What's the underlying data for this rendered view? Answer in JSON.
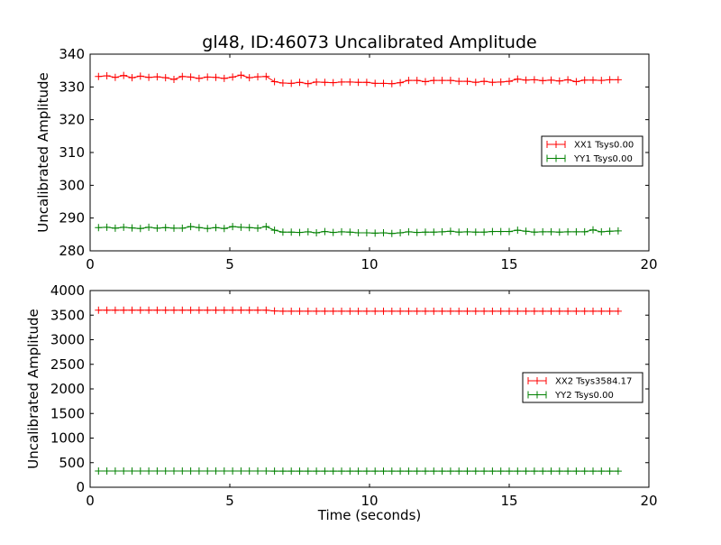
{
  "chart_data": [
    {
      "type": "line",
      "title": "gl48, ID:46073 Uncalibrated Amplitude",
      "xlabel": "",
      "ylabel": "Uncalibrated Amplitude",
      "xlim": [
        0,
        20
      ],
      "ylim": [
        280,
        340
      ],
      "xticks": [
        "0",
        "5",
        "10",
        "15",
        "20"
      ],
      "yticks": [
        "280",
        "290",
        "300",
        "310",
        "320",
        "330",
        "340"
      ],
      "grid": false,
      "legend_position": "center-right",
      "x": [
        0.3,
        0.6,
        0.9,
        1.2,
        1.5,
        1.8,
        2.1,
        2.4,
        2.7,
        3.0,
        3.3,
        3.6,
        3.9,
        4.2,
        4.5,
        4.8,
        5.1,
        5.4,
        5.7,
        6.0,
        6.3,
        6.6,
        6.9,
        7.2,
        7.5,
        7.8,
        8.1,
        8.4,
        8.7,
        9.0,
        9.3,
        9.6,
        9.9,
        10.2,
        10.5,
        10.8,
        11.1,
        11.4,
        11.7,
        12.0,
        12.3,
        12.6,
        12.9,
        13.2,
        13.5,
        13.8,
        14.1,
        14.4,
        14.7,
        15.0,
        15.3,
        15.6,
        15.9,
        16.2,
        16.5,
        16.8,
        17.1,
        17.4,
        17.7,
        18.0,
        18.3,
        18.6,
        18.9
      ],
      "series": [
        {
          "name": "XX1 Tsys0.00",
          "color": "#ff0000",
          "values": [
            333.2,
            333.4,
            332.9,
            333.5,
            332.8,
            333.3,
            332.9,
            333.1,
            332.8,
            332.3,
            333.2,
            333.0,
            332.6,
            333.0,
            332.9,
            332.6,
            333.0,
            333.6,
            332.8,
            333.1,
            333.2,
            331.6,
            331.2,
            331.1,
            331.4,
            331.0,
            331.5,
            331.4,
            331.3,
            331.5,
            331.5,
            331.4,
            331.4,
            331.1,
            331.1,
            331.0,
            331.3,
            332.0,
            332.0,
            331.6,
            332.0,
            332.0,
            332.0,
            331.7,
            331.7,
            331.4,
            331.7,
            331.4,
            331.5,
            331.7,
            332.4,
            332.1,
            332.2,
            331.9,
            332.1,
            331.8,
            332.2,
            331.6,
            332.1,
            332.1,
            332.0,
            332.2,
            332.2
          ]
        },
        {
          "name": "YY1 Tsys0.00",
          "color": "#008000",
          "values": [
            287.1,
            287.2,
            286.9,
            287.2,
            287.0,
            286.8,
            287.2,
            286.9,
            287.1,
            286.9,
            286.9,
            287.4,
            287.1,
            286.8,
            287.1,
            286.8,
            287.4,
            287.2,
            287.1,
            286.9,
            287.4,
            286.3,
            285.7,
            285.7,
            285.6,
            285.8,
            285.5,
            285.9,
            285.6,
            285.8,
            285.7,
            285.5,
            285.5,
            285.4,
            285.5,
            285.3,
            285.5,
            285.8,
            285.6,
            285.7,
            285.7,
            285.8,
            286.0,
            285.7,
            285.8,
            285.7,
            285.7,
            285.9,
            285.9,
            285.9,
            286.3,
            286.0,
            285.7,
            285.8,
            285.8,
            285.7,
            285.8,
            285.8,
            285.8,
            286.4,
            285.8,
            286.0,
            286.1
          ]
        }
      ]
    },
    {
      "type": "line",
      "title": "",
      "xlabel": "Time (seconds)",
      "ylabel": "Uncalibrated Amplitude",
      "xlim": [
        0,
        20
      ],
      "ylim": [
        0,
        4000
      ],
      "xticks": [
        "0",
        "5",
        "10",
        "15",
        "20"
      ],
      "yticks": [
        "0",
        "500",
        "1000",
        "1500",
        "2000",
        "2500",
        "3000",
        "3500",
        "4000"
      ],
      "grid": false,
      "legend_position": "center-right",
      "x": [
        0.3,
        0.6,
        0.9,
        1.2,
        1.5,
        1.8,
        2.1,
        2.4,
        2.7,
        3.0,
        3.3,
        3.6,
        3.9,
        4.2,
        4.5,
        4.8,
        5.1,
        5.4,
        5.7,
        6.0,
        6.3,
        6.6,
        6.9,
        7.2,
        7.5,
        7.8,
        8.1,
        8.4,
        8.7,
        9.0,
        9.3,
        9.6,
        9.9,
        10.2,
        10.5,
        10.8,
        11.1,
        11.4,
        11.7,
        12.0,
        12.3,
        12.6,
        12.9,
        13.2,
        13.5,
        13.8,
        14.1,
        14.4,
        14.7,
        15.0,
        15.3,
        15.6,
        15.9,
        16.2,
        16.5,
        16.8,
        17.1,
        17.4,
        17.7,
        18.0,
        18.3,
        18.6,
        18.9
      ],
      "series": [
        {
          "name": "XX2 Tsys3584.17",
          "color": "#ff0000",
          "values": [
            3600,
            3600,
            3600,
            3600,
            3600,
            3600,
            3600,
            3600,
            3600,
            3600,
            3600,
            3600,
            3600,
            3600,
            3600,
            3600,
            3600,
            3600,
            3600,
            3600,
            3600,
            3585,
            3580,
            3580,
            3580,
            3580,
            3580,
            3580,
            3580,
            3580,
            3580,
            3580,
            3580,
            3580,
            3580,
            3580,
            3580,
            3580,
            3580,
            3580,
            3580,
            3580,
            3580,
            3580,
            3580,
            3580,
            3580,
            3580,
            3580,
            3580,
            3580,
            3580,
            3580,
            3580,
            3580,
            3580,
            3580,
            3580,
            3580,
            3580,
            3580,
            3580,
            3580
          ]
        },
        {
          "name": "YY2 Tsys0.00",
          "color": "#008000",
          "values": [
            330,
            330,
            330,
            330,
            330,
            330,
            330,
            330,
            330,
            330,
            330,
            330,
            330,
            330,
            330,
            330,
            330,
            330,
            330,
            330,
            330,
            328,
            328,
            328,
            328,
            328,
            328,
            328,
            328,
            328,
            328,
            328,
            328,
            328,
            328,
            328,
            328,
            328,
            328,
            328,
            328,
            328,
            328,
            328,
            328,
            328,
            328,
            328,
            328,
            328,
            328,
            328,
            328,
            328,
            328,
            328,
            328,
            328,
            328,
            328,
            328,
            328,
            328
          ]
        }
      ]
    }
  ]
}
